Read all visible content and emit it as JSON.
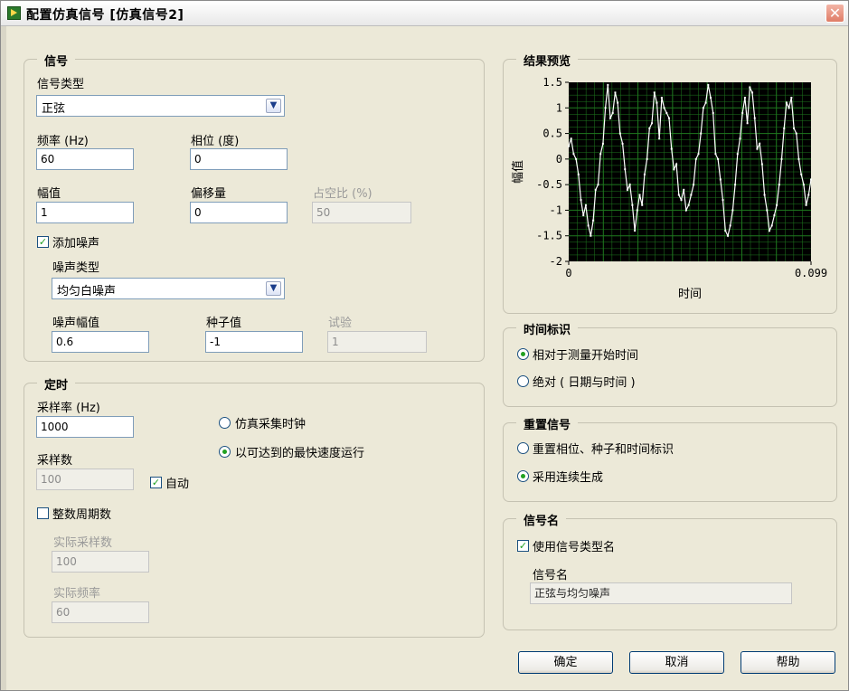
{
  "window": {
    "title": "配置仿真信号 [仿真信号2]",
    "close_symbol": "✕"
  },
  "signal": {
    "group_title": "信号",
    "type_label": "信号类型",
    "type_value": "正弦",
    "freq_label": "频率 (Hz)",
    "freq_value": "60",
    "phase_label": "相位 (度)",
    "phase_value": "0",
    "amp_label": "幅值",
    "amp_value": "1",
    "offset_label": "偏移量",
    "offset_value": "0",
    "duty_label": "占空比 (%)",
    "duty_value": "50",
    "add_noise_label": "添加噪声",
    "add_noise_checked": true,
    "noise_type_label": "噪声类型",
    "noise_type_value": "均匀白噪声",
    "noise_amp_label": "噪声幅值",
    "noise_amp_value": "0.6",
    "seed_label": "种子值",
    "seed_value": "-1",
    "trial_label": "试验",
    "trial_value": "1"
  },
  "timing": {
    "group_title": "定时",
    "rate_label": "采样率 (Hz)",
    "rate_value": "1000",
    "samples_label": "采样数",
    "samples_value": "100",
    "auto_label": "自动",
    "auto_checked": true,
    "integer_periods_label": "整数周期数",
    "integer_periods_checked": false,
    "actual_samples_label": "实际采样数",
    "actual_samples_value": "100",
    "actual_freq_label": "实际频率",
    "actual_freq_value": "60",
    "simulate_clock_label": "仿真采集时钟",
    "fastest_label": "以可达到的最快速度运行",
    "selected_mode": "fastest"
  },
  "preview": {
    "group_title": "结果预览",
    "ylabel": "幅值",
    "xlabel": "时间",
    "ytick_labels": [
      "1.5",
      "1",
      "0.5",
      "0",
      "-0.5",
      "-1",
      "-1.5",
      "-2"
    ],
    "xtick_labels": [
      "0",
      "0.099"
    ],
    "colors": {
      "plot_bg": "#000000",
      "grid": "#1f7a1f",
      "trace": "#ffffff"
    }
  },
  "chart_data": {
    "type": "line",
    "title": "",
    "xlabel": "时间",
    "ylabel": "幅值",
    "xlim": [
      0,
      0.099
    ],
    "ylim": [
      -2,
      1.5
    ],
    "grid": true,
    "series": [
      {
        "x": [
          0,
          0.001,
          0.002,
          0.003,
          0.004,
          0.005,
          0.006,
          0.007,
          0.008,
          0.009,
          0.01,
          0.011,
          0.012,
          0.013,
          0.014,
          0.015,
          0.016,
          0.017,
          0.018,
          0.019,
          0.02,
          0.021,
          0.022,
          0.023,
          0.024,
          0.025,
          0.026,
          0.027,
          0.028,
          0.029,
          0.03,
          0.031,
          0.032,
          0.033,
          0.034,
          0.035,
          0.036,
          0.037,
          0.038,
          0.039,
          0.04,
          0.041,
          0.042,
          0.043,
          0.044,
          0.045,
          0.046,
          0.047,
          0.048,
          0.049,
          0.05,
          0.051,
          0.052,
          0.053,
          0.054,
          0.055,
          0.056,
          0.057,
          0.058,
          0.059,
          0.06,
          0.061,
          0.062,
          0.063,
          0.064,
          0.065,
          0.066,
          0.067,
          0.068,
          0.069,
          0.07,
          0.071,
          0.072,
          0.073,
          0.074,
          0.075,
          0.076,
          0.077,
          0.078,
          0.079,
          0.08,
          0.081,
          0.082,
          0.083,
          0.084,
          0.085,
          0.086,
          0.087,
          0.088,
          0.089,
          0.09,
          0.091,
          0.092,
          0.093,
          0.094,
          0.095,
          0.096,
          0.097,
          0.098,
          0.099
        ],
        "values": [
          0.25,
          0.4,
          0.1,
          0.0,
          -0.3,
          -0.8,
          -1.1,
          -0.9,
          -1.3,
          -1.5,
          -1.2,
          -0.6,
          -0.5,
          0.1,
          0.3,
          1.0,
          1.45,
          0.8,
          0.9,
          1.3,
          1.1,
          0.5,
          0.3,
          -0.2,
          -0.6,
          -0.5,
          -0.9,
          -1.4,
          -1.0,
          -0.7,
          -0.9,
          -0.3,
          0.0,
          0.6,
          0.7,
          1.3,
          1.1,
          0.4,
          1.2,
          1.0,
          0.9,
          0.8,
          0.2,
          -0.2,
          -0.1,
          -0.7,
          -0.8,
          -0.6,
          -1.0,
          -0.9,
          -0.7,
          -0.5,
          0.0,
          0.1,
          0.5,
          1.0,
          1.1,
          1.45,
          1.2,
          0.9,
          0.1,
          0.0,
          -0.4,
          -0.8,
          -1.4,
          -1.5,
          -1.3,
          -1.0,
          -0.5,
          0.1,
          0.4,
          0.9,
          1.2,
          0.7,
          1.4,
          1.3,
          0.8,
          0.2,
          0.3,
          -0.1,
          -0.7,
          -1.0,
          -1.4,
          -1.3,
          -1.1,
          -0.9,
          -0.5,
          0.0,
          0.6,
          1.1,
          1.0,
          1.2,
          0.6,
          0.5,
          0.0,
          -0.3,
          -0.5,
          -0.9,
          -0.7,
          -0.4
        ]
      }
    ]
  },
  "time_stamp": {
    "group_title": "时间标识",
    "relative_label": "相对于测量开始时间",
    "absolute_label": "绝对 ( 日期与时间 )",
    "selected": "relative"
  },
  "reset_signal": {
    "group_title": "重置信号",
    "reset_label": "重置相位、种子和时间标识",
    "continuous_label": "采用连续生成",
    "selected": "continuous"
  },
  "signal_name": {
    "group_title": "信号名",
    "use_type_label": "使用信号类型名",
    "use_type_checked": true,
    "name_label": "信号名",
    "name_value": "正弦与均匀噪声"
  },
  "buttons": {
    "ok": "确定",
    "cancel": "取消",
    "help": "帮助"
  }
}
